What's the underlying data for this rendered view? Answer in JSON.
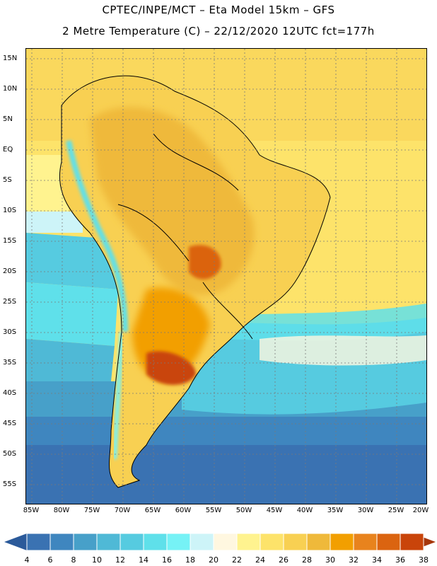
{
  "title": {
    "line1": "CPTEC/INPE/MCT –  Eta Model 15km – GFS",
    "line2": "2 Metre Temperature (C) – 22/12/2020 12UTC fct=177h"
  },
  "map": {
    "lon_range": [
      -85,
      -20
    ],
    "lat_range": [
      -58,
      16
    ],
    "lat_labels": [
      "15N",
      "10N",
      "5N",
      "EQ",
      "5S",
      "10S",
      "15S",
      "20S",
      "25S",
      "30S",
      "35S",
      "40S",
      "45S",
      "50S",
      "55S"
    ],
    "lon_labels": [
      "85W",
      "80W",
      "75W",
      "70W",
      "65W",
      "60W",
      "55W",
      "50W",
      "45W",
      "40W",
      "35W",
      "30W",
      "25W",
      "20W"
    ]
  },
  "colorbar": {
    "labels": [
      "4",
      "6",
      "8",
      "10",
      "12",
      "14",
      "16",
      "18",
      "20",
      "22",
      "24",
      "26",
      "28",
      "30",
      "32",
      "34",
      "36",
      "38"
    ],
    "colors": [
      "#2b5a9a",
      "#3a72b2",
      "#3f86bf",
      "#47a0c9",
      "#4fb9d6",
      "#56cbe0",
      "#5fe0ea",
      "#76f2f6",
      "#cdf4f8",
      "#fff7e0",
      "#fff38f",
      "#fde36a",
      "#f8d052",
      "#efb93a",
      "#f29f00",
      "#e8831d",
      "#db6410",
      "#c9440a",
      "#a6360a"
    ]
  }
}
